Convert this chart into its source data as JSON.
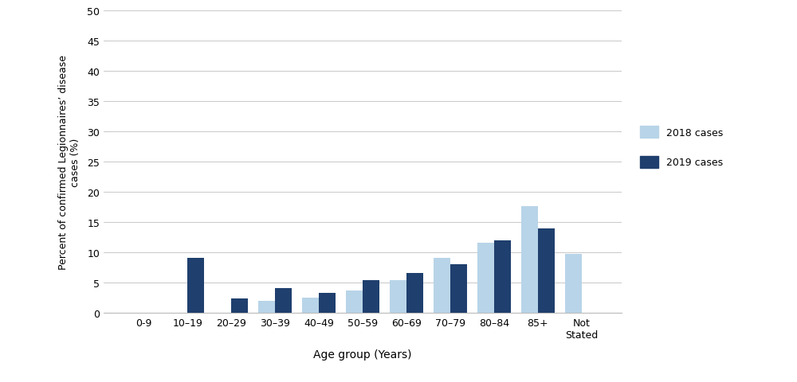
{
  "categories": [
    "0-9",
    "10–19",
    "20–29",
    "30–39",
    "40–49",
    "50–59",
    "60–69",
    "70–79",
    "80–84",
    "85+",
    "Not\nStated"
  ],
  "values_2018": [
    0,
    0,
    0,
    2.0,
    2.5,
    3.8,
    5.5,
    9.2,
    11.6,
    17.7,
    9.8
  ],
  "values_2019": [
    0,
    9.2,
    2.4,
    4.1,
    3.4,
    5.5,
    6.6,
    8.1,
    12.0,
    14.0,
    0
  ],
  "color_2018": "#b8d4e8",
  "color_2019": "#1f3f6e",
  "ylabel_line1": "Percent of confirmed Legionnaires’ disease",
  "ylabel_line2": "cases (%)",
  "xlabel": "Age group (Years)",
  "ylim": [
    0,
    50
  ],
  "yticks": [
    0,
    5,
    10,
    15,
    20,
    25,
    30,
    35,
    40,
    45,
    50
  ],
  "legend_2018": "2018 cases",
  "legend_2019": "2019 cases",
  "bar_width": 0.38,
  "grid_color": "#cccccc",
  "background_color": "#ffffff"
}
